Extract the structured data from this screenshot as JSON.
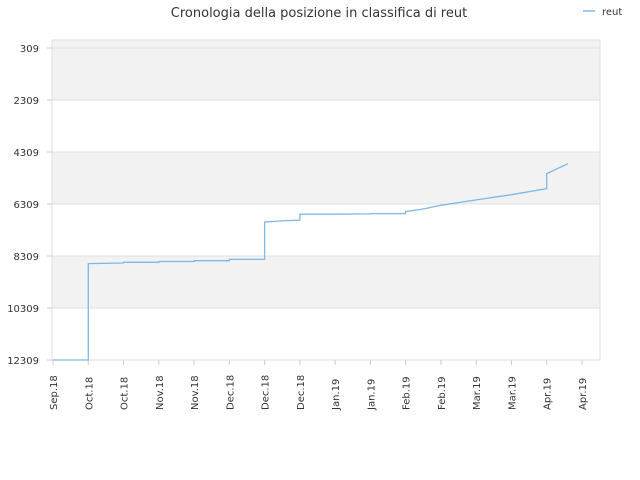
{
  "chart_data": {
    "type": "line",
    "title": "Cronologia della posizione in classifica di reut",
    "xlabel": "",
    "ylabel": "",
    "y_reversed": true,
    "ylim": [
      309,
      12309
    ],
    "y_ticks": [
      "309",
      "2309",
      "4309",
      "6309",
      "8309",
      "10309",
      "12309"
    ],
    "y_tick_values": [
      309,
      2309,
      4309,
      6309,
      8309,
      10309,
      12309
    ],
    "x_tick_labels": [
      "Sep.18",
      "Oct.18",
      "Oct.18",
      "Nov.18",
      "Nov.18",
      "Dec.18",
      "Dec.18",
      "Dec.18",
      "Jan.19",
      "Jan.19",
      "Feb.19",
      "Feb.19",
      "Mar.19",
      "Mar.19",
      "Apr.19",
      "Apr.19"
    ],
    "legend": {
      "position": "top-right",
      "entries": [
        "reut"
      ]
    },
    "colors": {
      "series": "#7db8e8",
      "band": "#f2f2f2",
      "grid": "#e0e0e0",
      "axis": "#dddddd"
    },
    "grid": true,
    "series": [
      {
        "name": "reut",
        "points": [
          [
            0.0,
            12309
          ],
          [
            1.0,
            12309
          ],
          [
            1.0,
            8600
          ],
          [
            2.0,
            8580
          ],
          [
            2.0,
            8550
          ],
          [
            3.0,
            8550
          ],
          [
            3.0,
            8520
          ],
          [
            4.0,
            8520
          ],
          [
            4.0,
            8490
          ],
          [
            5.0,
            8490
          ],
          [
            5.0,
            8440
          ],
          [
            6.0,
            8440
          ],
          [
            6.0,
            7000
          ],
          [
            6.5,
            6960
          ],
          [
            7.0,
            6930
          ],
          [
            7.0,
            6700
          ],
          [
            8.0,
            6700
          ],
          [
            9.0,
            6690
          ],
          [
            9.0,
            6680
          ],
          [
            10.0,
            6680
          ],
          [
            10.0,
            6600
          ],
          [
            10.5,
            6500
          ],
          [
            11.0,
            6360
          ],
          [
            12.0,
            6150
          ],
          [
            13.0,
            5950
          ],
          [
            14.0,
            5720
          ],
          [
            14.0,
            5140
          ],
          [
            14.6,
            4760
          ]
        ]
      }
    ]
  }
}
